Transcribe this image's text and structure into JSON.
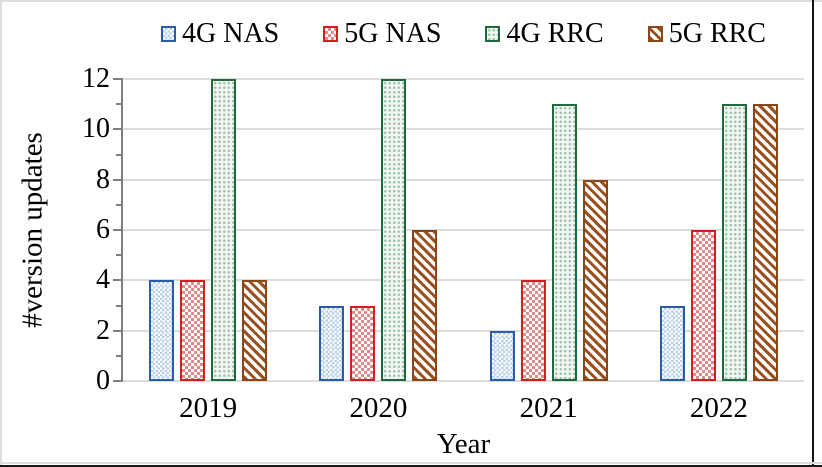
{
  "chart_data": {
    "type": "bar",
    "title": "",
    "xlabel": "Year",
    "ylabel": "#version updates",
    "categories": [
      "2019",
      "2020",
      "2021",
      "2022"
    ],
    "series": [
      {
        "name": "4G NAS",
        "values": [
          4,
          3,
          2,
          3
        ],
        "pattern": "checker",
        "border_color": "#2b5ca8",
        "fill_color": "#b9cfe8"
      },
      {
        "name": "5G NAS",
        "values": [
          4,
          3,
          4,
          6
        ],
        "pattern": "diamond",
        "border_color": "#cf1f1f",
        "fill_color": "#e08a8a"
      },
      {
        "name": "4G RRC",
        "values": [
          12,
          12,
          11,
          11
        ],
        "pattern": "dots",
        "border_color": "#1f693d",
        "fill_color": "#9fc1ac"
      },
      {
        "name": "5G RRC",
        "values": [
          4,
          6,
          8,
          11
        ],
        "pattern": "stripes",
        "border_color": "#8a4619",
        "fill_color": "#99511f"
      }
    ],
    "ylim": [
      0,
      12
    ],
    "yticks": [
      0,
      2,
      4,
      6,
      8,
      10,
      12
    ],
    "minor_yticks": [
      1,
      3,
      5,
      7,
      9,
      11
    ],
    "grid": true,
    "legend_position": "top"
  },
  "style_colors": {
    "gridline": "#dcdcdc",
    "axis_line": "#7f7f7f",
    "text": "#000000",
    "figure_border": "#161616"
  }
}
